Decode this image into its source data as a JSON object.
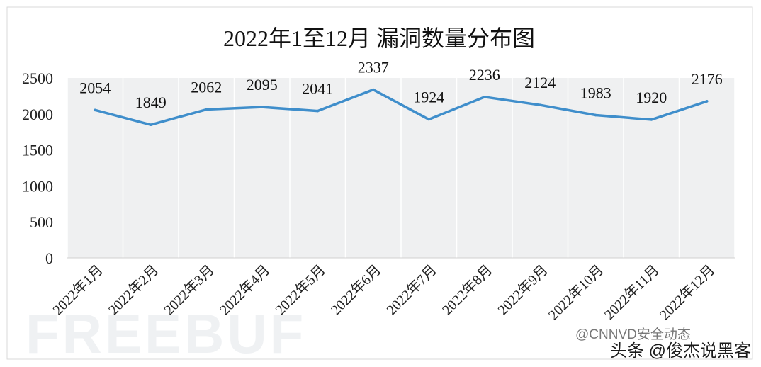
{
  "chart_data": {
    "type": "line",
    "title": "2022年1至12月 漏洞数量分布图",
    "categories": [
      "2022年1月",
      "2022年2月",
      "2022年3月",
      "2022年4月",
      "2022年5月",
      "2022年6月",
      "2022年7月",
      "2022年8月",
      "2022年9月",
      "2022年10月",
      "2022年11月",
      "2022年12月"
    ],
    "values": [
      2054,
      1849,
      2062,
      2095,
      2041,
      2337,
      1924,
      2236,
      2124,
      1983,
      1920,
      2176
    ],
    "data_labels": [
      "2054",
      "1849",
      "2062",
      "2095",
      "2041",
      "2337",
      "1924",
      "2236",
      "2124",
      "1983",
      "1920",
      "2176"
    ],
    "ylim": [
      0,
      2500
    ],
    "yticks": [
      "0",
      "500",
      "1000",
      "1500",
      "2000",
      "2500"
    ],
    "grid": "vertical",
    "line_color": "#3f8ecb",
    "plot_background": "#eff0f1"
  },
  "watermark": {
    "logo_text": "FREEBUF",
    "caption": "@CNNVD安全动态",
    "credit": "头条 @俊杰说黑客"
  }
}
